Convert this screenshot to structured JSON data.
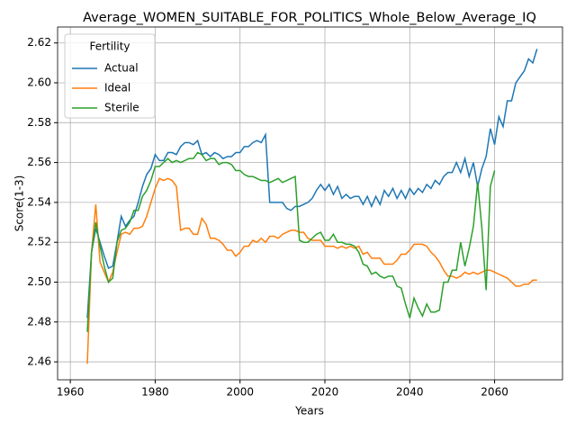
{
  "chart_data": {
    "type": "line",
    "title": "Average_WOMEN_SUITABLE_FOR_POLITICS_Whole_Below_Average_IQ",
    "xlabel": "Years",
    "ylabel": "Score(1-3)",
    "legend_title": "Fertility",
    "legend_loc": "upper left",
    "grid": true,
    "xlim": [
      1957,
      2076
    ],
    "ylim": [
      2.451,
      2.628
    ],
    "xticks": [
      1960,
      1980,
      2000,
      2020,
      2040,
      2060
    ],
    "yticks": [
      2.46,
      2.48,
      {
        "value": 2.5,
        "label": "2.50"
      },
      2.52,
      2.54,
      2.56,
      2.58,
      {
        "value": 2.6,
        "label": "2.60"
      },
      2.62
    ],
    "x": [
      1964,
      1965,
      1966,
      1967,
      1968,
      1969,
      1970,
      1971,
      1972,
      1973,
      1974,
      1975,
      1976,
      1977,
      1978,
      1979,
      1980,
      1981,
      1982,
      1983,
      1984,
      1985,
      1986,
      1987,
      1988,
      1989,
      1990,
      1991,
      1992,
      1993,
      1994,
      1995,
      1996,
      1997,
      1998,
      1999,
      2000,
      2001,
      2002,
      2003,
      2004,
      2005,
      2006,
      2007,
      2008,
      2009,
      2010,
      2011,
      2012,
      2013,
      2014,
      2015,
      2016,
      2017,
      2018,
      2019,
      2020,
      2021,
      2022,
      2023,
      2024,
      2025,
      2026,
      2027,
      2028,
      2029,
      2030,
      2031,
      2032,
      2033,
      2034,
      2035,
      2036,
      2037,
      2038,
      2039,
      2040,
      2041,
      2042,
      2043,
      2044,
      2045,
      2046,
      2047,
      2048,
      2049,
      2050,
      2051,
      2052,
      2053,
      2054,
      2055,
      2056,
      2057,
      2058,
      2059,
      2060,
      2061,
      2062,
      2063,
      2064,
      2065,
      2066,
      2067,
      2068,
      2069,
      2070
    ],
    "series": [
      {
        "name": "Actual",
        "color": "#1f77b4",
        "values": [
          2.482,
          2.515,
          2.527,
          2.52,
          2.513,
          2.507,
          2.508,
          2.52,
          2.533,
          2.528,
          2.531,
          2.533,
          2.54,
          2.548,
          2.554,
          2.557,
          2.564,
          2.561,
          2.561,
          2.565,
          2.565,
          2.564,
          2.568,
          2.57,
          2.57,
          2.569,
          2.571,
          2.564,
          2.565,
          2.563,
          2.565,
          2.564,
          2.562,
          2.563,
          2.563,
          2.565,
          2.565,
          2.568,
          2.568,
          2.57,
          2.571,
          2.57,
          2.574,
          2.54,
          2.54,
          2.54,
          2.54,
          2.537,
          2.536,
          2.538,
          2.538,
          2.539,
          2.54,
          2.542,
          2.546,
          2.549,
          2.546,
          2.549,
          2.544,
          2.548,
          2.542,
          2.544,
          2.542,
          2.543,
          2.543,
          2.539,
          2.543,
          2.538,
          2.543,
          2.539,
          2.546,
          2.543,
          2.547,
          2.542,
          2.546,
          2.542,
          2.547,
          2.544,
          2.547,
          2.545,
          2.549,
          2.547,
          2.551,
          2.549,
          2.553,
          2.555,
          2.555,
          2.56,
          2.555,
          2.562,
          2.553,
          2.56,
          2.548,
          2.557,
          2.563,
          2.577,
          2.569,
          2.583,
          2.578,
          2.591,
          2.591,
          2.6,
          2.603,
          2.606,
          2.612,
          2.61,
          2.617
        ]
      },
      {
        "name": "Ideal",
        "color": "#ff7f0e",
        "values": [
          2.459,
          2.515,
          2.539,
          2.51,
          2.505,
          2.5,
          2.505,
          2.515,
          2.524,
          2.525,
          2.524,
          2.527,
          2.527,
          2.528,
          2.533,
          2.54,
          2.547,
          2.552,
          2.551,
          2.552,
          2.551,
          2.548,
          2.526,
          2.527,
          2.527,
          2.524,
          2.524,
          2.532,
          2.529,
          2.522,
          2.522,
          2.521,
          2.519,
          2.516,
          2.516,
          2.513,
          2.515,
          2.518,
          2.518,
          2.521,
          2.52,
          2.522,
          2.52,
          2.523,
          2.523,
          2.522,
          2.524,
          2.525,
          2.526,
          2.526,
          2.525,
          2.525,
          2.522,
          2.521,
          2.521,
          2.521,
          2.518,
          2.518,
          2.518,
          2.517,
          2.518,
          2.517,
          2.518,
          2.517,
          2.518,
          2.514,
          2.515,
          2.512,
          2.512,
          2.512,
          2.509,
          2.509,
          2.509,
          2.511,
          2.514,
          2.514,
          2.516,
          2.519,
          2.519,
          2.519,
          2.518,
          2.515,
          2.513,
          2.51,
          2.506,
          2.503,
          2.503,
          2.502,
          2.503,
          2.505,
          2.504,
          2.505,
          2.504,
          2.505,
          2.506,
          2.506,
          2.505,
          2.504,
          2.503,
          2.502,
          2.5,
          2.498,
          2.498,
          2.499,
          2.499,
          2.501,
          2.501
        ]
      },
      {
        "name": "Sterile",
        "color": "#2ca02c",
        "values": [
          2.475,
          2.515,
          2.53,
          2.518,
          2.508,
          2.5,
          2.502,
          2.52,
          2.526,
          2.527,
          2.53,
          2.536,
          2.536,
          2.543,
          2.546,
          2.551,
          2.558,
          2.558,
          2.56,
          2.562,
          2.56,
          2.561,
          2.56,
          2.561,
          2.562,
          2.562,
          2.565,
          2.564,
          2.561,
          2.562,
          2.562,
          2.559,
          2.56,
          2.56,
          2.559,
          2.556,
          2.556,
          2.554,
          2.553,
          2.553,
          2.552,
          2.551,
          2.551,
          2.55,
          2.551,
          2.552,
          2.55,
          2.551,
          2.552,
          2.553,
          2.521,
          2.52,
          2.52,
          2.522,
          2.524,
          2.525,
          2.521,
          2.521,
          2.524,
          2.52,
          2.52,
          2.519,
          2.519,
          2.518,
          2.515,
          2.509,
          2.508,
          2.504,
          2.505,
          2.503,
          2.502,
          2.503,
          2.503,
          2.498,
          2.497,
          2.489,
          2.482,
          2.492,
          2.487,
          2.483,
          2.489,
          2.485,
          2.485,
          2.486,
          2.5,
          2.5,
          2.506,
          2.506,
          2.52,
          2.508,
          2.517,
          2.528,
          2.55,
          2.527,
          2.496,
          2.548,
          2.556,
          null,
          null,
          null,
          null,
          null,
          null,
          null,
          null,
          null,
          null
        ]
      }
    ]
  }
}
